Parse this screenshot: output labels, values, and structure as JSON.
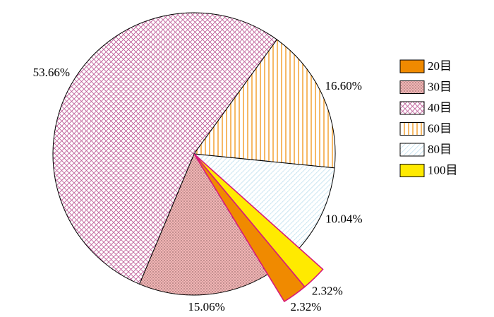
{
  "chart_data": {
    "type": "pie",
    "categories": [
      "20目",
      "30目",
      "40目",
      "60目",
      "80目",
      "100目"
    ],
    "values": [
      2.32,
      15.06,
      53.66,
      16.6,
      10.04,
      2.32
    ],
    "value_labels": [
      "2.32%",
      "15.06%",
      "53.66%",
      "16.60%",
      "10.04%",
      "2.32%"
    ],
    "colors": [
      "#f08a00",
      "#f2b4b4",
      "#c0609a",
      "#f08a00",
      "#9ccfe6",
      "#ffea00"
    ],
    "hatch": [
      "solid",
      "dots",
      "cross",
      "vertical",
      "diagonal",
      "solid"
    ],
    "explode": [
      true,
      false,
      false,
      false,
      false,
      true
    ],
    "legend": "right"
  }
}
